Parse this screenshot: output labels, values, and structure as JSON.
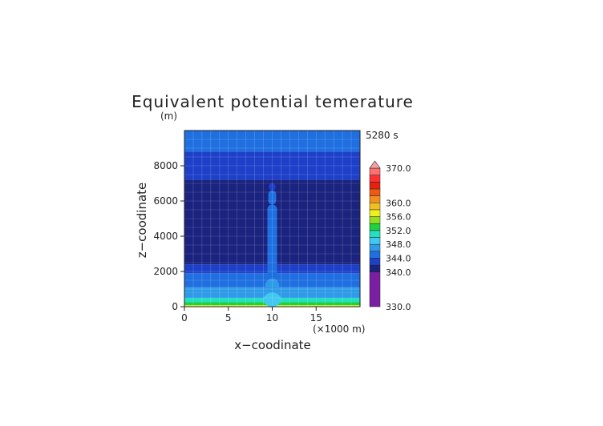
{
  "chart_data": {
    "type": "heatmap",
    "title": "Equivalent potential temerature",
    "time_label": "5280 s",
    "xlabel": "x−coodinate",
    "ylabel": "z−coodinate",
    "x_unit": "(×1000 m)",
    "y_unit": "(m)",
    "xlim": [
      0,
      20
    ],
    "ylim": [
      0,
      10000
    ],
    "x_ticks": [
      0,
      5,
      10,
      15
    ],
    "y_ticks": [
      0,
      2000,
      4000,
      6000,
      8000
    ],
    "grid": true,
    "colorbar": {
      "levels": [
        330,
        340,
        342,
        344,
        346,
        348,
        350,
        352,
        354,
        356,
        358,
        360,
        362,
        364,
        366,
        368,
        370
      ],
      "tick_labels": [
        "330.0",
        "340.0",
        "344.0",
        "348.0",
        "352.0",
        "356.0",
        "360.0",
        "370.0"
      ],
      "colors": [
        "#7b1fa2",
        "#1a237e",
        "#1e40c8",
        "#1f6fe0",
        "#2f9be8",
        "#3fc8f0",
        "#23e0c0",
        "#20d040",
        "#8ee020",
        "#f0f020",
        "#f0c020",
        "#f09020",
        "#f05a10",
        "#e82010",
        "#ff3030",
        "#ff7070",
        "#f4a0a0"
      ]
    },
    "bands": [
      {
        "z_top": 80,
        "theta": 356
      },
      {
        "z_top": 250,
        "theta": 352
      },
      {
        "z_top": 500,
        "theta": 350
      },
      {
        "z_top": 800,
        "theta": 347
      },
      {
        "z_top": 1100,
        "theta": 346
      },
      {
        "z_top": 1500,
        "theta": 345
      },
      {
        "z_top": 1900,
        "theta": 344
      },
      {
        "z_top": 2400,
        "theta": 342
      },
      {
        "z_top": 7200,
        "theta": 340
      },
      {
        "z_top": 8500,
        "theta": 342
      },
      {
        "z_top": 8800,
        "theta": 343
      },
      {
        "z_top": 10000,
        "theta": 344
      }
    ],
    "plume": {
      "x_center": 10,
      "core": [
        {
          "z_bottom": 0,
          "z_top": 800,
          "theta": 349,
          "half_width": 1.0
        },
        {
          "z_bottom": 800,
          "z_top": 1600,
          "theta": 346,
          "half_width": 0.8
        },
        {
          "z_bottom": 1600,
          "z_top": 5800,
          "theta": 345,
          "half_width": 0.55
        },
        {
          "z_bottom": 5800,
          "z_top": 6600,
          "theta": 344,
          "half_width": 0.45
        },
        {
          "z_bottom": 6600,
          "z_top": 7000,
          "theta": 342,
          "half_width": 0.4
        }
      ]
    }
  }
}
